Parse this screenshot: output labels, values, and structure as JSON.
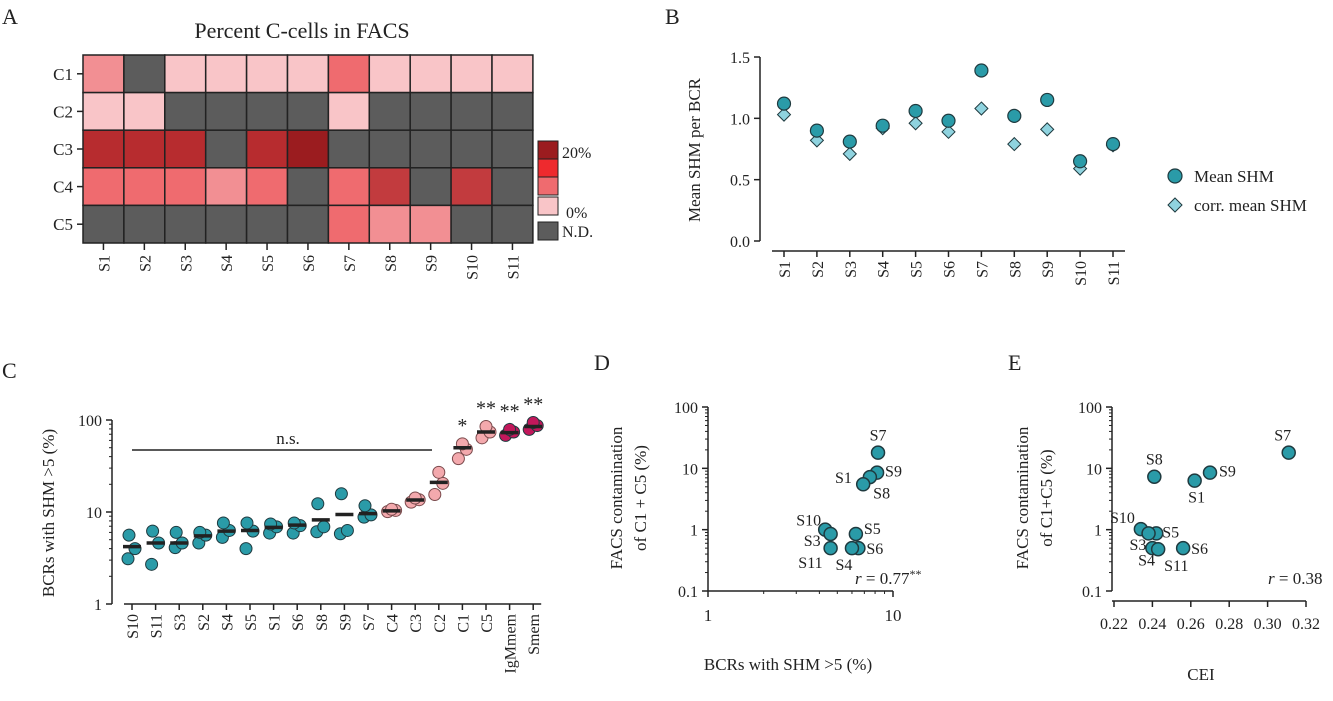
{
  "panel_letters": [
    "A",
    "B",
    "C",
    "D",
    "E"
  ],
  "colors": {
    "teal": "#2a9ba8",
    "teal_light": "#8fd3df",
    "nd": "#5c5c5c",
    "light_pink": "#f9c5c8",
    "mid_pink": "#f28f93",
    "red": "#ef6b6f",
    "dark_red": "#c23b3e",
    "darkest_red": "#9b1c1f",
    "magenta": "#c2185b",
    "c1c5_circle": "#f3a9ad"
  },
  "chart_data": [
    {
      "panel": "A",
      "type": "heatmap",
      "title": "Percent C-cells in FACS",
      "rows": [
        "C1",
        "C2",
        "C3",
        "C4",
        "C5"
      ],
      "columns": [
        "S1",
        "S2",
        "S3",
        "S4",
        "S5",
        "S6",
        "S7",
        "S8",
        "S9",
        "S10",
        "S11"
      ],
      "values": [
        [
          5,
          null,
          1.5,
          1.5,
          1.5,
          1.5,
          8,
          1.5,
          1.5,
          1.5,
          1.5
        ],
        [
          1.5,
          1.5,
          null,
          null,
          null,
          null,
          1.5,
          null,
          null,
          null,
          null
        ],
        [
          16,
          16,
          17,
          null,
          15,
          20,
          null,
          null,
          null,
          null,
          null
        ],
        [
          8,
          8,
          8,
          4,
          8,
          null,
          8,
          14,
          null,
          14,
          null
        ],
        [
          null,
          null,
          null,
          null,
          null,
          null,
          8,
          4,
          6,
          null,
          null
        ]
      ],
      "legend": {
        "max_label": "20%",
        "min_label": "0%",
        "na_label": "N.D."
      }
    },
    {
      "panel": "B",
      "type": "scatter",
      "categories": [
        "S1",
        "S2",
        "S3",
        "S4",
        "S5",
        "S6",
        "S7",
        "S8",
        "S9",
        "S10",
        "S11"
      ],
      "ylabel": "Mean SHM per BCR",
      "ylim": [
        0,
        1.5
      ],
      "yticks": [
        "0.0",
        "0.5",
        "1.0",
        "1.5"
      ],
      "series": [
        {
          "name": "Mean SHM",
          "marker": "circle",
          "values": [
            1.12,
            0.9,
            0.81,
            0.94,
            1.06,
            0.98,
            1.39,
            1.02,
            1.15,
            0.65,
            0.79
          ]
        },
        {
          "name": "corr. mean SHM",
          "marker": "diamond",
          "values": [
            1.03,
            0.82,
            0.71,
            0.92,
            0.96,
            0.89,
            1.08,
            0.79,
            0.91,
            0.59,
            0.78
          ]
        }
      ],
      "legend_position": "right"
    },
    {
      "panel": "C",
      "type": "scatter",
      "scale": "log",
      "ylabel": "BCRs with SHM >5 (%)",
      "ylim": [
        1,
        100
      ],
      "yticks": [
        "1",
        "10",
        "100"
      ],
      "categories": [
        "S10",
        "S11",
        "S3",
        "S2",
        "S4",
        "S5",
        "S1",
        "S6",
        "S8",
        "S9",
        "S7",
        "C4",
        "C3",
        "C2",
        "C1",
        "C5",
        "IgMmem",
        "Smem"
      ],
      "points": [
        [
          3.1,
          4.0,
          5.6
        ],
        [
          2.7,
          4.6,
          6.2
        ],
        [
          4.1,
          4.6,
          6.0
        ],
        [
          4.6,
          5.6,
          6.0
        ],
        [
          5.3,
          6.3,
          7.6
        ],
        [
          4.0,
          6.2,
          7.6
        ],
        [
          5.9,
          6.9,
          7.4
        ],
        [
          5.9,
          7.1,
          7.6
        ],
        [
          6.1,
          6.9,
          12.3
        ],
        [
          5.8,
          6.3,
          15.8
        ],
        [
          8.8,
          9.3,
          11.7
        ],
        [
          10.1,
          10.4,
          10.7
        ],
        [
          12.8,
          13.6,
          14.2
        ],
        [
          15.5,
          20.5,
          27.0
        ],
        [
          38.0,
          48.0,
          55.0
        ],
        [
          64.0,
          74.0,
          85.0
        ],
        [
          68.0,
          74.0,
          79.0
        ],
        [
          79.0,
          87.0,
          94.0
        ]
      ],
      "medians": [
        4.2,
        4.6,
        4.6,
        5.5,
        6.2,
        6.3,
        6.8,
        7.2,
        8.2,
        9.4,
        9.6,
        10.3,
        13.5,
        21.0,
        50.0,
        74.0,
        73.0,
        85.0
      ],
      "annotations": {
        "ns_label": "n.s.",
        "stars": [
          {
            "category": "C1",
            "label": "*"
          },
          {
            "category": "C5",
            "label": "**"
          },
          {
            "category": "IgMmem",
            "label": "**"
          },
          {
            "category": "Smem",
            "label": "**"
          }
        ]
      }
    },
    {
      "panel": "D",
      "type": "scatter",
      "xscale": "log",
      "yscale": "log",
      "xlabel": "BCRs with SHM >5 (%)",
      "ylabel_line1": "FACS contamination",
      "ylabel_line2": "of C1 + C5 (%)",
      "xticks": [
        "1",
        "10"
      ],
      "yticks": [
        "0.1",
        "1",
        "10",
        "100"
      ],
      "r_label": "r = 0.77",
      "r_stars": "**",
      "points": [
        {
          "label": "S7",
          "x": 8.3,
          "y": 18
        },
        {
          "label": "S9",
          "x": 8.2,
          "y": 8.5
        },
        {
          "label": "S1",
          "x": 7.5,
          "y": 7.2
        },
        {
          "label": "S8",
          "x": 6.9,
          "y": 5.5
        },
        {
          "label": "S10",
          "x": 4.3,
          "y": 1.0
        },
        {
          "label": "S5",
          "x": 6.3,
          "y": 0.85
        },
        {
          "label": "S3",
          "x": 4.6,
          "y": 0.85
        },
        {
          "label": "S6",
          "x": 6.5,
          "y": 0.5
        },
        {
          "label": "S11",
          "x": 4.6,
          "y": 0.5
        },
        {
          "label": "S4",
          "x": 6.0,
          "y": 0.5
        }
      ]
    },
    {
      "panel": "E",
      "type": "scatter",
      "yscale": "log",
      "xlabel": "CEI",
      "ylabel_line1": "FACS contamination",
      "ylabel_line2": "of  C1+C5 (%)",
      "xlim": [
        0.22,
        0.32
      ],
      "xticks": [
        "0.22",
        "0.24",
        "0.26",
        "0.28",
        "0.30",
        "0.32"
      ],
      "yticks": [
        "0.1",
        "1",
        "10",
        "100"
      ],
      "r_label": "r = 0.38",
      "points": [
        {
          "label": "S7",
          "x": 0.311,
          "y": 18
        },
        {
          "label": "S9",
          "x": 0.27,
          "y": 8.5
        },
        {
          "label": "S8",
          "x": 0.241,
          "y": 7.3
        },
        {
          "label": "S1",
          "x": 0.262,
          "y": 6.3
        },
        {
          "label": "S10",
          "x": 0.234,
          "y": 1.02
        },
        {
          "label": "S5",
          "x": 0.242,
          "y": 0.87
        },
        {
          "label": "S3",
          "x": 0.24,
          "y": 0.5
        },
        {
          "label": "S6",
          "x": 0.256,
          "y": 0.5
        },
        {
          "label": "S4",
          "x": 0.238,
          "y": 0.87
        },
        {
          "label": "S11",
          "x": 0.243,
          "y": 0.48
        }
      ]
    }
  ]
}
